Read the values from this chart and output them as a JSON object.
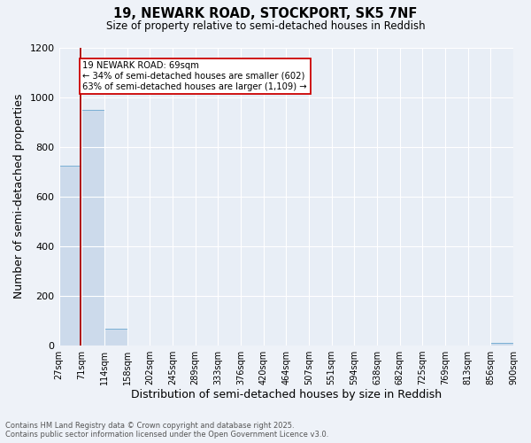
{
  "title1": "19, NEWARK ROAD, STOCKPORT, SK5 7NF",
  "title2": "Size of property relative to semi-detached houses in Reddish",
  "xlabel": "Distribution of semi-detached houses by size in Reddish",
  "ylabel": "Number of semi-detached properties",
  "categories": [
    "27sqm",
    "71sqm",
    "114sqm",
    "158sqm",
    "202sqm",
    "245sqm",
    "289sqm",
    "333sqm",
    "376sqm",
    "420sqm",
    "464sqm",
    "507sqm",
    "551sqm",
    "594sqm",
    "638sqm",
    "682sqm",
    "725sqm",
    "769sqm",
    "813sqm",
    "856sqm",
    "900sqm"
  ],
  "bar_heights": [
    725,
    950,
    65,
    0,
    0,
    0,
    0,
    0,
    0,
    0,
    0,
    0,
    0,
    0,
    0,
    0,
    0,
    0,
    0,
    10,
    0
  ],
  "bar_color": "#ccdaeb",
  "bar_edge_color": "#7aafd4",
  "annotation_title": "19 NEWARK ROAD: 69sqm",
  "annotation_line1": "← 34% of semi-detached houses are smaller (602)",
  "annotation_line2": "63% of semi-detached houses are larger (1,109) →",
  "red_line_color": "#aa0000",
  "annotation_box_color": "#ffffff",
  "annotation_box_edge": "#cc0000",
  "ylim": [
    0,
    1200
  ],
  "yticks": [
    0,
    200,
    400,
    600,
    800,
    1000,
    1200
  ],
  "footnote1": "Contains HM Land Registry data © Crown copyright and database right 2025.",
  "footnote2": "Contains public sector information licensed under the Open Government Licence v3.0.",
  "bg_color": "#eef2f8",
  "plot_bg_color": "#e8eef6",
  "grid_color": "#ffffff",
  "tick_fontsize": 7,
  "label_fontsize": 8
}
